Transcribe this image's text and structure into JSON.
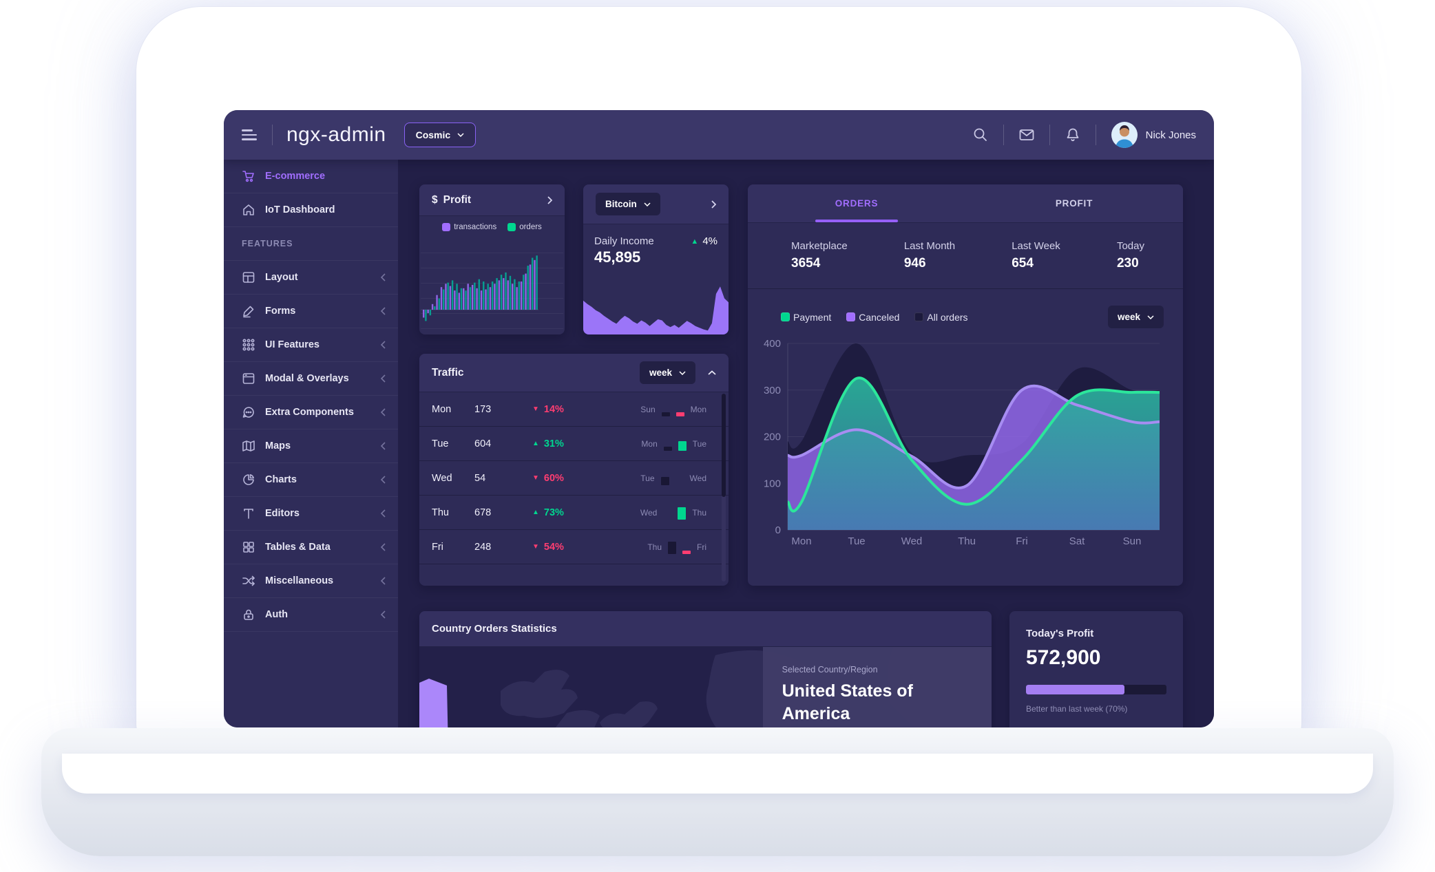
{
  "colors": {
    "accent": "#a16eff",
    "success": "#00d68f",
    "danger": "#ff3d71",
    "dark_bar": "#191734"
  },
  "header": {
    "app_title": "ngx-admin",
    "theme_select": "Cosmic",
    "user_name": "Nick Jones"
  },
  "sidebar": {
    "items": [
      {
        "label": "E-commerce"
      },
      {
        "label": "IoT Dashboard"
      },
      {
        "label": "FEATURES"
      },
      {
        "label": "Layout"
      },
      {
        "label": "Forms"
      },
      {
        "label": "UI Features"
      },
      {
        "label": "Modal & Overlays"
      },
      {
        "label": "Extra Components"
      },
      {
        "label": "Maps"
      },
      {
        "label": "Charts"
      },
      {
        "label": "Editors"
      },
      {
        "label": "Tables & Data"
      },
      {
        "label": "Miscellaneous"
      },
      {
        "label": "Auth"
      }
    ]
  },
  "profit_card": {
    "title": "Profit",
    "currency_symbol": "$",
    "legend": [
      {
        "label": "transactions"
      },
      {
        "label": "orders"
      }
    ]
  },
  "bitcoin_card": {
    "selector": "Bitcoin",
    "label": "Daily Income",
    "value": "45,895",
    "change": "4%"
  },
  "orders_card": {
    "tabs": [
      {
        "label": "ORDERS"
      },
      {
        "label": "PROFIT"
      }
    ],
    "active_tab": "ORDERS",
    "stats": [
      {
        "label": "Marketplace",
        "value": "3654"
      },
      {
        "label": "Last Month",
        "value": "946"
      },
      {
        "label": "Last Week",
        "value": "654"
      },
      {
        "label": "Today",
        "value": "230"
      }
    ],
    "legend": [
      {
        "label": "Payment",
        "color": "#00d68f"
      },
      {
        "label": "Canceled",
        "color": "#a16eff"
      },
      {
        "label": "All orders",
        "color": "#1c1a3c"
      }
    ],
    "period": "week"
  },
  "traffic_card": {
    "title": "Traffic",
    "period": "week",
    "rows": [
      {
        "day": "Mon",
        "value": "173",
        "direction": "down",
        "delta_pct": "14%",
        "compare_from": "Sun",
        "compare_to": "Mon",
        "bars": [
          {
            "color": "dark",
            "h": 6
          },
          {
            "color": "red",
            "h": 6
          }
        ]
      },
      {
        "day": "Tue",
        "value": "604",
        "direction": "up",
        "delta_pct": "31%",
        "compare_from": "Mon",
        "compare_to": "Tue",
        "bars": [
          {
            "color": "dark",
            "h": 6
          },
          {
            "color": "green",
            "h": 14
          }
        ]
      },
      {
        "day": "Wed",
        "value": "54",
        "direction": "down",
        "delta_pct": "60%",
        "compare_from": "Tue",
        "compare_to": "Wed",
        "bars": [
          {
            "color": "dark",
            "h": 12
          },
          {
            "color": "none",
            "h": 0
          }
        ]
      },
      {
        "day": "Thu",
        "value": "678",
        "direction": "up",
        "delta_pct": "73%",
        "compare_from": "Wed",
        "compare_to": "Thu",
        "bars": [
          {
            "color": "none",
            "h": 0
          },
          {
            "color": "green",
            "h": 18
          }
        ]
      },
      {
        "day": "Fri",
        "value": "248",
        "direction": "down",
        "delta_pct": "54%",
        "compare_from": "Thu",
        "compare_to": "Fri",
        "bars": [
          {
            "color": "dark",
            "h": 18
          },
          {
            "color": "red",
            "h": 5
          }
        ]
      }
    ]
  },
  "country_card": {
    "title": "Country Orders Statistics",
    "selected_label": "Selected Country/Region",
    "selected_country": "United States of America"
  },
  "today_profit_card": {
    "title": "Today's Profit",
    "value": "572,900",
    "caption": "Better than last week (70%)",
    "progress_pct": 70
  },
  "chart_data": [
    {
      "id": "orders_weekly",
      "type": "area",
      "title": "Orders weekly",
      "categories": [
        "Mon",
        "Tue",
        "Wed",
        "Thu",
        "Fri",
        "Sat",
        "Sun"
      ],
      "ylim": [
        0,
        400
      ],
      "yticks": [
        0,
        100,
        200,
        300,
        400
      ],
      "grid": true,
      "legend_position": "top",
      "series": [
        {
          "name": "All orders",
          "color": "#1e1c40",
          "values": [
            190,
            400,
            165,
            160,
            185,
            345,
            300
          ]
        },
        {
          "name": "Canceled",
          "color": "#a16eff",
          "values": [
            160,
            215,
            158,
            95,
            300,
            268,
            232
          ]
        },
        {
          "name": "Payment",
          "color": "#2ce69b",
          "values": [
            60,
            325,
            150,
            55,
            150,
            288,
            295
          ]
        }
      ]
    },
    {
      "id": "profit_mini",
      "type": "bar",
      "title": "Profit: transactions vs orders",
      "series": [
        {
          "name": "transactions",
          "color": "#a16eff",
          "values": [
            -14,
            -6,
            10,
            26,
            40,
            46,
            42,
            34,
            30,
            38,
            46,
            44,
            38,
            34,
            36,
            40,
            46,
            52,
            56,
            52,
            46,
            40,
            50,
            64,
            80,
            88
          ]
        },
        {
          "name": "orders",
          "color": "#00b39b",
          "values": [
            -20,
            -10,
            6,
            20,
            36,
            48,
            52,
            46,
            38,
            34,
            40,
            48,
            54,
            50,
            46,
            50,
            56,
            62,
            66,
            60,
            54,
            50,
            62,
            78,
            92,
            96
          ]
        }
      ]
    },
    {
      "id": "bitcoin_spark",
      "type": "area",
      "title": "Daily income sparkline",
      "color": "#9b75f8",
      "values": [
        60,
        54,
        49,
        43,
        39,
        33,
        28,
        23,
        19,
        27,
        33,
        29,
        23,
        19,
        25,
        21,
        15,
        21,
        27,
        25,
        17,
        13,
        17,
        12,
        18,
        24,
        20,
        15,
        12,
        9,
        7,
        20,
        72,
        85,
        64,
        57
      ]
    }
  ]
}
